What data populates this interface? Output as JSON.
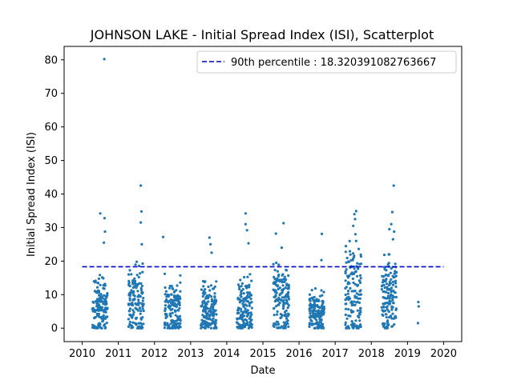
{
  "chart_data": {
    "type": "scatter",
    "title": "JOHNSON LAKE - Initial Spread Index (ISI), Scatterplot",
    "xlabel": "Date",
    "ylabel": "Initial Spread Index (ISI)",
    "xlim": [
      2009.5,
      2020.5
    ],
    "ylim": [
      -4,
      84
    ],
    "x_ticks": [
      2010,
      2011,
      2012,
      2013,
      2014,
      2015,
      2016,
      2017,
      2018,
      2019,
      2020
    ],
    "y_ticks": [
      0,
      10,
      20,
      30,
      40,
      50,
      60,
      70,
      80
    ],
    "grid": false,
    "legend_position": "top-right",
    "point_color": "#1f77b4",
    "series": [
      {
        "seasons": [
          {
            "start": 2010.28,
            "end": 2010.7,
            "min": 0,
            "max": 21,
            "count": 150,
            "center": 7
          },
          {
            "start": 2011.28,
            "end": 2011.7,
            "min": 0,
            "max": 25,
            "count": 150,
            "center": 8
          },
          {
            "start": 2012.28,
            "end": 2012.72,
            "min": 0,
            "max": 18.5,
            "count": 150,
            "center": 7
          },
          {
            "start": 2013.28,
            "end": 2013.72,
            "min": 0,
            "max": 18,
            "count": 150,
            "center": 6
          },
          {
            "start": 2014.28,
            "end": 2014.7,
            "min": 0,
            "max": 21,
            "count": 150,
            "center": 7
          },
          {
            "start": 2015.28,
            "end": 2015.72,
            "min": 0,
            "max": 19.5,
            "count": 150,
            "center": 9
          },
          {
            "start": 2016.28,
            "end": 2016.7,
            "min": 0,
            "max": 13,
            "count": 150,
            "center": 5
          },
          {
            "start": 2017.28,
            "end": 2017.72,
            "min": 0,
            "max": 26,
            "count": 150,
            "center": 12
          },
          {
            "start": 2018.28,
            "end": 2018.7,
            "min": 0,
            "max": 22,
            "count": 150,
            "center": 10
          }
        ],
        "points": [
          {
            "x": 2010.61,
            "y": 80.2
          },
          {
            "x": 2010.5,
            "y": 34.2
          },
          {
            "x": 2010.62,
            "y": 32.8
          },
          {
            "x": 2010.63,
            "y": 28.8
          },
          {
            "x": 2010.6,
            "y": 25.5
          },
          {
            "x": 2011.62,
            "y": 42.5
          },
          {
            "x": 2011.64,
            "y": 34.8
          },
          {
            "x": 2011.62,
            "y": 31.5
          },
          {
            "x": 2011.65,
            "y": 25.0
          },
          {
            "x": 2012.24,
            "y": 27.2
          },
          {
            "x": 2013.52,
            "y": 27.0
          },
          {
            "x": 2013.55,
            "y": 25.0
          },
          {
            "x": 2013.58,
            "y": 22.5
          },
          {
            "x": 2014.52,
            "y": 34.2
          },
          {
            "x": 2014.52,
            "y": 31.0
          },
          {
            "x": 2014.56,
            "y": 29.2
          },
          {
            "x": 2014.6,
            "y": 25.3
          },
          {
            "x": 2015.36,
            "y": 28.2
          },
          {
            "x": 2015.57,
            "y": 31.3
          },
          {
            "x": 2015.52,
            "y": 24.0
          },
          {
            "x": 2016.63,
            "y": 28.1
          },
          {
            "x": 2016.62,
            "y": 20.3
          },
          {
            "x": 2017.53,
            "y": 34.0
          },
          {
            "x": 2017.58,
            "y": 34.9
          },
          {
            "x": 2017.55,
            "y": 32.5
          },
          {
            "x": 2017.5,
            "y": 30.5
          },
          {
            "x": 2017.56,
            "y": 28.0
          },
          {
            "x": 2018.62,
            "y": 42.5
          },
          {
            "x": 2018.58,
            "y": 34.6
          },
          {
            "x": 2018.55,
            "y": 31.0
          },
          {
            "x": 2018.63,
            "y": 28.8
          },
          {
            "x": 2018.5,
            "y": 29.5
          },
          {
            "x": 2018.6,
            "y": 26.5
          },
          {
            "x": 2019.3,
            "y": 7.8
          },
          {
            "x": 2019.31,
            "y": 6.5
          },
          {
            "x": 2019.29,
            "y": 1.5
          }
        ]
      },
      {
        "name": "90th percentile : 18.320391082763667",
        "type": "hline",
        "y": 18.320391082763667,
        "x_range": [
          2010,
          2020
        ],
        "color": "#0000cc",
        "style": "dashed"
      }
    ]
  }
}
